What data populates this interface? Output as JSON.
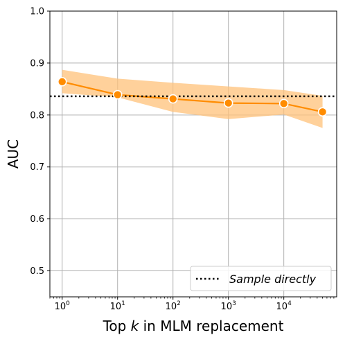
{
  "chart_data": {
    "type": "line",
    "x_scale": "log",
    "xlabel_parts": [
      "Top ",
      "k",
      " in MLM replacement"
    ],
    "ylabel": "AUC",
    "xlim": [
      0.6,
      90000
    ],
    "ylim": [
      0.45,
      1.0
    ],
    "grid": true,
    "legend_position": "lower-right",
    "y_ticks": [
      {
        "value": 0.5,
        "label": "0.5"
      },
      {
        "value": 0.6,
        "label": "0.6"
      },
      {
        "value": 0.7,
        "label": "0.7"
      },
      {
        "value": 0.8,
        "label": "0.8"
      },
      {
        "value": 0.9,
        "label": "0.9"
      },
      {
        "value": 1.0,
        "label": "1.0"
      }
    ],
    "x_ticks": [
      {
        "value": 1,
        "base": "10",
        "exp": "0"
      },
      {
        "value": 10,
        "base": "10",
        "exp": "1"
      },
      {
        "value": 100,
        "base": "10",
        "exp": "2"
      },
      {
        "value": 1000,
        "base": "10",
        "exp": "3"
      },
      {
        "value": 10000,
        "base": "10",
        "exp": "4"
      }
    ],
    "series": [
      {
        "color": "#ff8c00",
        "band_color": "#ffc27a",
        "points": [
          {
            "x": 1,
            "y": 0.864,
            "lower": 0.842,
            "upper": 0.887
          },
          {
            "x": 10,
            "y": 0.839,
            "lower": 0.834,
            "upper": 0.87
          },
          {
            "x": 100,
            "y": 0.831,
            "lower": 0.806,
            "upper": 0.862
          },
          {
            "x": 1000,
            "y": 0.823,
            "lower": 0.792,
            "upper": 0.855
          },
          {
            "x": 10000,
            "y": 0.822,
            "lower": 0.801,
            "upper": 0.848
          },
          {
            "x": 50000,
            "y": 0.806,
            "lower": 0.775,
            "upper": 0.837
          }
        ]
      }
    ],
    "reference_line": {
      "y": 0.836,
      "name": "Sample directly",
      "style": "dotted",
      "color": "#000000"
    }
  }
}
